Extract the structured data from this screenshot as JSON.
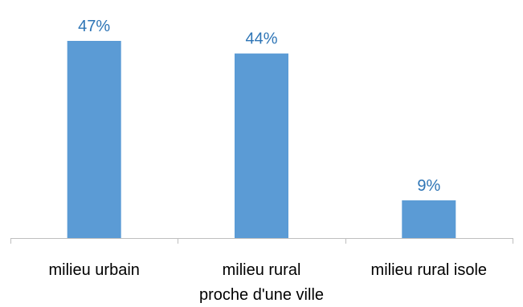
{
  "chart_data": {
    "type": "bar",
    "categories": [
      "milieu urbain",
      [
        "milieu rural",
        "proche d'une ville"
      ],
      "milieu rural isole"
    ],
    "values": [
      47,
      44,
      9
    ],
    "data_labels": [
      "47%",
      "44%",
      "9%"
    ],
    "unit": "%",
    "title": "",
    "xlabel": "",
    "ylabel": "",
    "ylim": [
      0,
      47
    ],
    "grid": false,
    "legend": "none",
    "colors": {
      "bar": "#5B9BD5",
      "data_label": "#2E75B6",
      "axis": "#BFBFBF",
      "tick_label": "#000000"
    }
  }
}
